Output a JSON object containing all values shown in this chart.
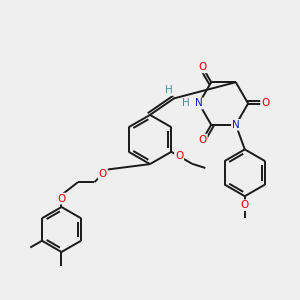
{
  "background_color": "#efefef",
  "bond_color": "#1a1a1a",
  "atom_colors": {
    "O": "#e00000",
    "N": "#1414c8",
    "H": "#4a8fa0",
    "C": "#1a1a1a"
  },
  "figsize": [
    3.0,
    3.0
  ],
  "dpi": 100,
  "lw": 1.4,
  "fontsize": 7.5
}
